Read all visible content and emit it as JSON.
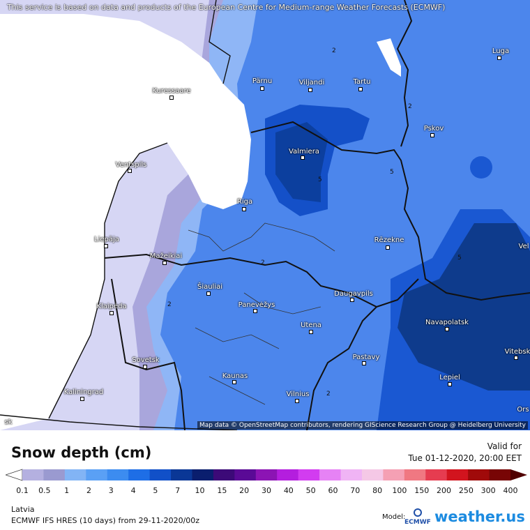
{
  "map": {
    "attribution_top": "This service is based on data and products of the European Centre for Medium-range Weather Forecasts (ECMWF)",
    "attribution_bottom": "Map data © OpenStreetMap contributors, rendering GIScience Research Group @ Heidelberg University",
    "cities": [
      {
        "name": "Luga"
      },
      {
        "name": "Pärnu"
      },
      {
        "name": "Viljandi"
      },
      {
        "name": "Tartu"
      },
      {
        "name": "Kuressaare"
      },
      {
        "name": "Pskov"
      },
      {
        "name": "Valmiera"
      },
      {
        "name": "Ventspils"
      },
      {
        "name": "Riga"
      },
      {
        "name": "Liepāja"
      },
      {
        "name": "Rēzekne"
      },
      {
        "name": "Mažeikiai"
      },
      {
        "name": "Šiauliai"
      },
      {
        "name": "Daugavpils"
      },
      {
        "name": "Klaipėda"
      },
      {
        "name": "Panevėžys"
      },
      {
        "name": "Navapolatsk"
      },
      {
        "name": "Utena"
      },
      {
        "name": "Vitebsk"
      },
      {
        "name": "Sovetsk"
      },
      {
        "name": "Pastavy"
      },
      {
        "name": "Kaunas"
      },
      {
        "name": "Lepiel"
      },
      {
        "name": "Kaliningrad"
      },
      {
        "name": "Vilnius"
      },
      {
        "name": "Ors"
      },
      {
        "name": "Vel"
      },
      {
        "name": "sk"
      }
    ],
    "contour_labels": [
      "2",
      "2",
      "5",
      "5",
      "2",
      "2",
      "5",
      "2"
    ]
  },
  "legend": {
    "title": "Snow depth (cm)",
    "valid_label": "Valid for",
    "valid_date": "Tue 01-12-2020, 20:00 EET",
    "ticks": [
      "0.1",
      "0.5",
      "1",
      "2",
      "3",
      "4",
      "5",
      "7",
      "10",
      "15",
      "20",
      "30",
      "40",
      "50",
      "60",
      "70",
      "80",
      "100",
      "150",
      "200",
      "250",
      "300",
      "400"
    ],
    "colors": [
      "#dcdcf5",
      "#b4b0e0",
      "#9a9ad0",
      "#82b4f5",
      "#5aa0f5",
      "#3c8cf0",
      "#1e6ee6",
      "#1150c8",
      "#0a3796",
      "#0a1e6e",
      "#3c0a78",
      "#5a0a96",
      "#8c14b4",
      "#b41ede",
      "#d23cf0",
      "#e682f5",
      "#f0b4f5",
      "#f5c8e6",
      "#f5a0b4",
      "#f07882",
      "#e63c50",
      "#d2141e",
      "#a00a0a",
      "#780505",
      "#500000"
    ],
    "region": "Latvia",
    "model_run": "ECMWF IFS HRES (10 days) from 29-11-2020/00z",
    "model_label": "Model:",
    "model_logo": "ECMWF",
    "brand": "weather.us"
  }
}
